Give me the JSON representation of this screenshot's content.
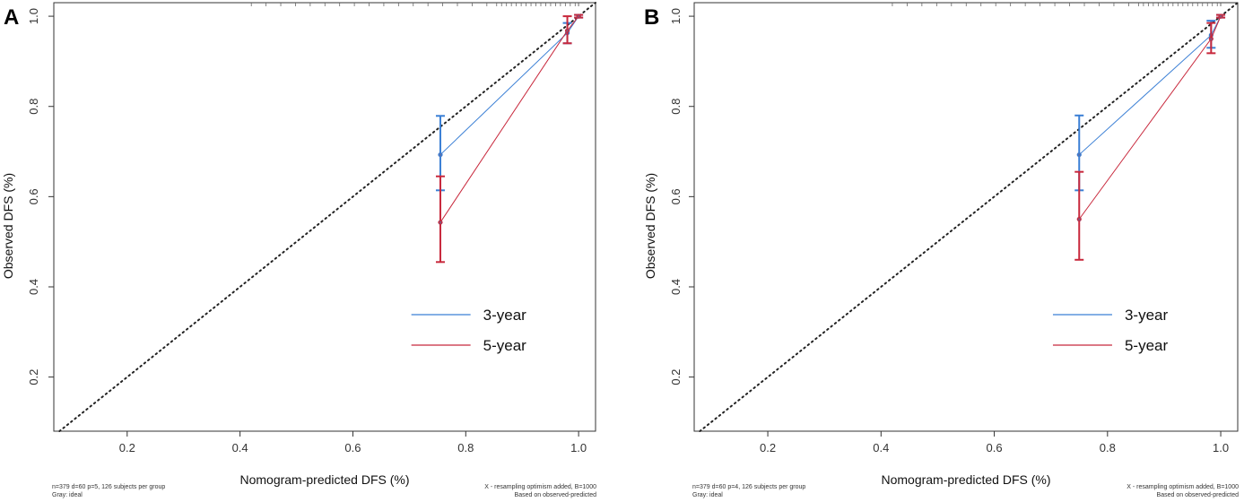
{
  "figure": {
    "panels": [
      {
        "label": "A",
        "xlabel": "Nomogram-predicted DFS (%)",
        "ylabel": "Observed DFS (%)",
        "footnote_left": [
          "n=379 d=60 p=5, 126 subjects per group",
          "Gray: ideal"
        ],
        "footnote_right": [
          "X - resampling optimism added, B=1000",
          "Based on observed-predicted"
        ]
      },
      {
        "label": "B",
        "xlabel": "Nomogram-predicted DFS (%)",
        "ylabel": "Observed DFS (%)",
        "footnote_left": [
          "n=379 d=60 p=4, 126 subjects per group",
          "Gray: ideal"
        ],
        "footnote_right": [
          "X - resampling optimism added, B=1000",
          "Based on observed-predicted"
        ]
      }
    ]
  },
  "colors": {
    "three_year": "#3a7fd5",
    "five_year": "#c8283c",
    "ideal": "#222222",
    "axis": "#333333"
  },
  "chart_data": [
    {
      "type": "line",
      "title": "A",
      "xlabel": "Nomogram-predicted DFS (%)",
      "ylabel": "Observed DFS (%)",
      "xlim": [
        0.07,
        1.03
      ],
      "ylim": [
        0.08,
        1.03
      ],
      "xticks": [
        0.2,
        0.4,
        0.6,
        0.8,
        1.0
      ],
      "xtick_labels": [
        "0.2",
        "0.4",
        "0.6",
        "0.8",
        "1.0"
      ],
      "yticks": [
        0.2,
        0.4,
        0.6,
        0.8,
        1.0
      ],
      "ytick_labels": [
        "0.2",
        "0.4",
        "0.6",
        "0.8",
        "1.0"
      ],
      "legend": [
        "3-year",
        "5-year"
      ],
      "legend_position": "lower-right",
      "series": [
        {
          "name": "3-year",
          "x": [
            0.755,
            0.98,
            1.0
          ],
          "y": [
            0.693,
            0.963,
            1.0
          ],
          "lower": [
            0.614,
            0.94,
            0.997
          ],
          "upper": [
            0.779,
            0.985,
            1.003
          ]
        },
        {
          "name": "5-year",
          "x": [
            0.755,
            0.98,
            1.0
          ],
          "y": [
            0.543,
            0.968,
            1.0
          ],
          "lower": [
            0.455,
            0.94,
            0.997
          ],
          "upper": [
            0.645,
            1.0,
            1.003
          ]
        }
      ]
    },
    {
      "type": "line",
      "title": "B",
      "xlabel": "Nomogram-predicted DFS (%)",
      "ylabel": "Observed DFS (%)",
      "xlim": [
        0.07,
        1.03
      ],
      "ylim": [
        0.08,
        1.03
      ],
      "xticks": [
        0.2,
        0.4,
        0.6,
        0.8,
        1.0
      ],
      "xtick_labels": [
        "0.2",
        "0.4",
        "0.6",
        "0.8",
        "1.0"
      ],
      "yticks": [
        0.2,
        0.4,
        0.6,
        0.8,
        1.0
      ],
      "ytick_labels": [
        "0.2",
        "0.4",
        "0.6",
        "0.8",
        "1.0"
      ],
      "legend": [
        "3-year",
        "5-year"
      ],
      "legend_position": "lower-right",
      "series": [
        {
          "name": "3-year",
          "x": [
            0.75,
            0.983,
            1.0
          ],
          "y": [
            0.693,
            0.958,
            1.0
          ],
          "lower": [
            0.614,
            0.93,
            0.997
          ],
          "upper": [
            0.78,
            0.99,
            1.003
          ]
        },
        {
          "name": "5-year",
          "x": [
            0.75,
            0.983,
            1.0
          ],
          "y": [
            0.55,
            0.95,
            1.0
          ],
          "lower": [
            0.46,
            0.918,
            0.997
          ],
          "upper": [
            0.655,
            0.985,
            1.003
          ]
        }
      ]
    }
  ]
}
